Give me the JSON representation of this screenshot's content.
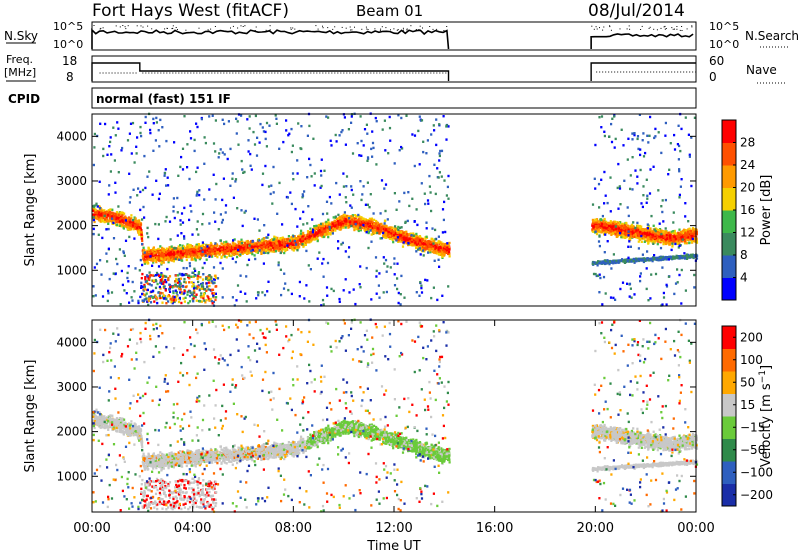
{
  "header": {
    "radar": "Fort Hays West (fitACF)",
    "beam": "Beam 01",
    "date": "08/Jul/2014"
  },
  "strip_labels": {
    "nsky": "N.Sky",
    "nsky_tick_hi": "10^5",
    "nsky_tick_lo": "10^0",
    "nsearch": "N.Search",
    "nsearch_tick_hi": "10^5",
    "nsearch_tick_lo": "10^0",
    "freq_line1": "Freq.",
    "freq_line2": "[MHz]",
    "freq_tick_hi": "18",
    "freq_tick_lo": "8",
    "nave": "Nave",
    "nave_tick_hi": "60",
    "nave_tick_lo": "0",
    "cpid": "CPID",
    "cpid_value": "normal (fast) 151 IF"
  },
  "colors": {
    "power": [
      "#0000ff",
      "#2e5fbf",
      "#3a8a5e",
      "#3eb84a",
      "#f5d000",
      "#ff9a00",
      "#ff5000",
      "#ff0000"
    ],
    "velocity": [
      "#ff0000",
      "#ff6a00",
      "#ffa800",
      "#c8c8c8",
      "#6acb3a",
      "#2f8a4a",
      "#2e5fbf",
      "#1a2ea8"
    ]
  },
  "chart_data": [
    {
      "type": "heatmap",
      "name": "power",
      "ylabel": "Slant Range [km]",
      "yticks": [
        1000,
        2000,
        3000,
        4000
      ],
      "ylim": [
        200,
        4500
      ],
      "xlim": [
        "00:00",
        "24:00"
      ],
      "colorbar": {
        "label": "Power [dB]",
        "ticks": [
          4,
          8,
          12,
          16,
          20,
          24,
          28
        ],
        "range": [
          0,
          32
        ]
      },
      "data_gap": [
        "14:10",
        "19:50"
      ],
      "band_x_hours": [
        0,
        0.5,
        1,
        1.5,
        1.9,
        2.0,
        3,
        4,
        5,
        6,
        7,
        8,
        9,
        10,
        11,
        12,
        13,
        14,
        20,
        21,
        22,
        23,
        24
      ],
      "band_center_km": [
        2250,
        2220,
        2150,
        2050,
        1950,
        1300,
        1350,
        1400,
        1450,
        1500,
        1550,
        1600,
        1850,
        2100,
        2000,
        1800,
        1600,
        1450,
        2000,
        1900,
        1800,
        1700,
        1800
      ]
    },
    {
      "type": "heatmap",
      "name": "velocity",
      "ylabel": "Slant Range [km]",
      "xlabel": "Time UT",
      "yticks": [
        1000,
        2000,
        3000,
        4000
      ],
      "ylim": [
        200,
        4500
      ],
      "xticks": [
        "00:00",
        "04:00",
        "08:00",
        "12:00",
        "16:00",
        "20:00",
        "00:00"
      ],
      "colorbar": {
        "label": "Velocity [m s^-1]",
        "ticks": [
          "200",
          "100",
          "50",
          "15",
          "−15",
          "−50",
          "−100",
          "−200"
        ]
      },
      "data_gap": [
        "14:10",
        "19:50"
      ]
    }
  ]
}
